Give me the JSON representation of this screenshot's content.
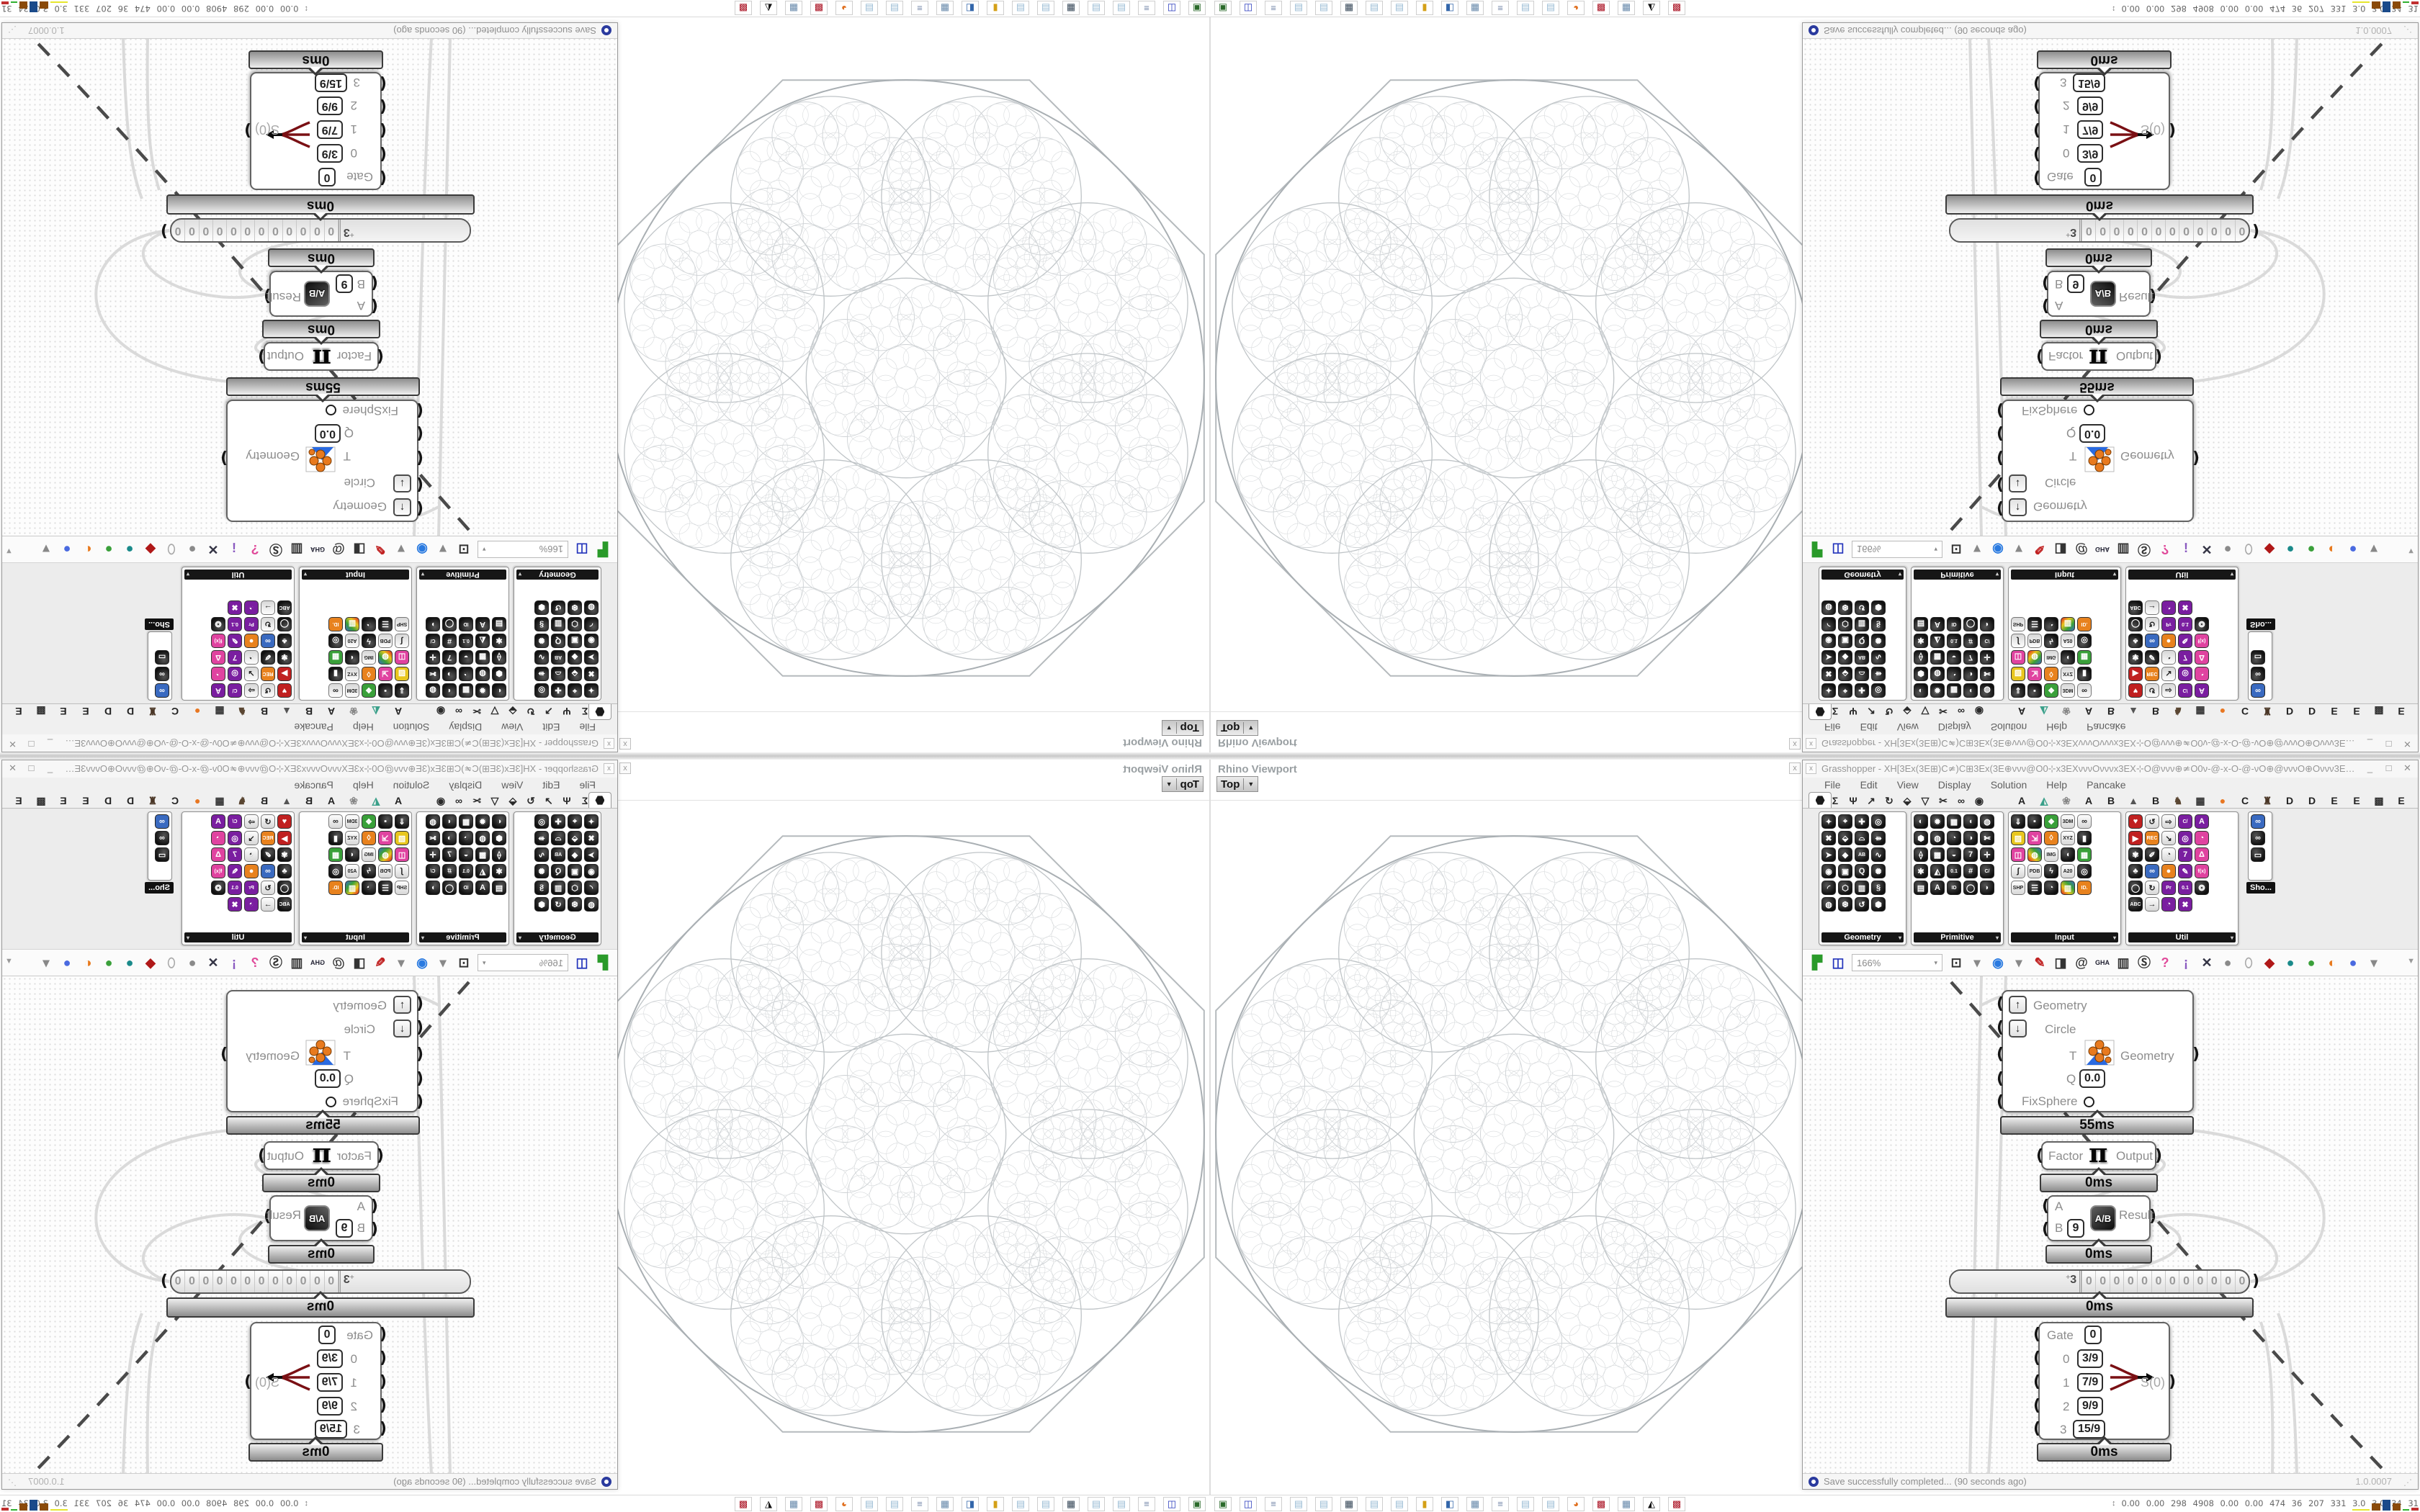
{
  "viewport": {
    "title": "Rhino Viewport",
    "tab": "Top",
    "tab_arrow": "▼",
    "close_label": "x"
  },
  "window": {
    "close_left": "x",
    "title": "Grasshopper - XH[3Ex(3E⊞)C≄)C⊞3Ex(3E⊕ννν@Ο0⊹x3EXνννΟνννx3EX⊹Ο@ννν⊕≄Ο0ν-@-x-Ο-@-νΟ⊕@νννΟ⊕Οννν3E]3Eννν⊕Οννν@≄Ο0ν-@-x-Ο-@-νΟ⊕@ννν@0⊹x3ExνννΟ...",
    "minimize": "_",
    "maximize": "□",
    "close": "✕"
  },
  "menu": {
    "items": [
      "File",
      "Edit",
      "View",
      "Display",
      "Solution",
      "Help",
      "Pancake"
    ]
  },
  "tabs": {
    "primary": [
      "⬢",
      "Σ",
      "Ψ",
      "↗",
      "↻",
      "⬙",
      "▽",
      "✂",
      "∞",
      "◉"
    ],
    "plugins": [
      [
        "A",
        "#222"
      ],
      [
        "◭",
        "#3aa08a"
      ],
      [
        "❀",
        "#888"
      ],
      [
        "A",
        "#222"
      ],
      [
        "B",
        "#222"
      ],
      [
        "▲",
        "#555"
      ],
      [
        "B",
        "#222"
      ],
      [
        "♞",
        "#5a4632"
      ],
      [
        "▦",
        "#333"
      ],
      [
        "●",
        "#e87722"
      ],
      [
        "C",
        "#222"
      ],
      [
        "♜",
        "#4a3626"
      ],
      [
        "D",
        "#222"
      ],
      [
        "D",
        "#222"
      ],
      [
        "E",
        "#222"
      ],
      [
        "E",
        "#222"
      ],
      [
        "▩",
        "#333"
      ],
      [
        "E",
        "#222"
      ]
    ]
  },
  "palette": {
    "panels": [
      {
        "label": "Geometry",
        "cols": 4,
        "icons": [
          [
            "✦"
          ],
          [
            "⌖"
          ],
          [
            "✚"
          ],
          [
            "◎"
          ],
          [
            "✖"
          ],
          [
            "⬙"
          ],
          [
            "⌓"
          ],
          [
            "⇻"
          ],
          [
            "➤"
          ],
          [
            "◆"
          ],
          [
            "AB"
          ],
          [
            "∿"
          ],
          [
            "◉"
          ],
          [
            "▣"
          ],
          [
            "Q"
          ],
          [
            "✺"
          ],
          [
            "◜"
          ],
          [
            "⬡"
          ],
          [
            "▥"
          ],
          [
            "§"
          ],
          [
            "◍"
          ],
          [
            "❆"
          ],
          [
            "↺"
          ],
          [
            "⬢"
          ]
        ]
      },
      {
        "label": "Primitive",
        "cols": 5,
        "icons": [
          [
            "◐"
          ],
          [
            "✹"
          ],
          [
            "▦"
          ],
          [
            "◖"
          ],
          [
            "◍"
          ],
          [
            "⬢"
          ],
          [
            "◍"
          ],
          [
            "◔"
          ],
          [
            "◑"
          ],
          [
            "✄"
          ],
          [
            "⟠"
          ],
          [
            "▩"
          ],
          [
            "◒"
          ],
          [
            "7"
          ],
          [
            "✛"
          ],
          [
            "✱"
          ],
          [
            "◭"
          ],
          [
            "0.1"
          ],
          [
            "#"
          ],
          [
            "C/"
          ],
          [
            "▤"
          ],
          [
            "A"
          ],
          [
            "ID"
          ],
          [
            "◯"
          ],
          [
            "◗"
          ]
        ]
      },
      {
        "label": "Input",
        "cols": 5,
        "icons": [
          [
            "⇓"
          ],
          [
            "▪"
          ],
          [
            "❖",
            "g"
          ],
          [
            "3DM",
            "w"
          ],
          [
            "∞",
            "w"
          ],
          [
            "▨",
            "y"
          ],
          [
            "⇲",
            "p"
          ],
          [
            "◊",
            "o"
          ],
          [
            "XYZ",
            "w"
          ],
          [
            "▮"
          ],
          [
            "◫",
            "p"
          ],
          [
            "◍",
            "rb"
          ],
          [
            "IMG",
            "w"
          ],
          [
            "◖"
          ],
          [
            "▦",
            "g"
          ],
          [
            "∫",
            "w"
          ],
          [
            "PDB",
            "w"
          ],
          [
            "ϟ"
          ],
          [
            "A20",
            "w"
          ],
          [
            "◎"
          ],
          [
            "SHP",
            "w"
          ],
          [
            "☰"
          ],
          [
            "◔"
          ],
          [
            "▥",
            "rb"
          ],
          [
            "ID.",
            "o"
          ]
        ]
      },
      {
        "label": "Util",
        "cols": 5,
        "icons": [
          [
            "♥",
            "r"
          ],
          [
            "↺",
            "w"
          ],
          [
            "⇨",
            "w"
          ],
          [
            "C/",
            "pu"
          ],
          [
            "A",
            "pu"
          ],
          [
            "▶",
            "r"
          ],
          [
            "REC",
            "o"
          ],
          [
            "↘",
            "w"
          ],
          [
            "◎",
            "pu"
          ],
          [
            "◔",
            "p"
          ],
          [
            "✾"
          ],
          [
            "✐"
          ],
          [
            "◔",
            "w"
          ],
          [
            "7",
            "pu"
          ],
          [
            "Δ",
            "p"
          ],
          [
            "♣"
          ],
          [
            "∞",
            "b"
          ],
          [
            "●",
            "o"
          ],
          [
            "✎",
            "pu"
          ],
          [
            "f(x)",
            "p"
          ],
          [
            "◯"
          ],
          [
            "↻",
            "w"
          ],
          [
            "Pr",
            "pu"
          ],
          [
            "0.1",
            "pu"
          ],
          [
            "❂"
          ],
          [
            "ABC"
          ],
          [
            "→",
            "w"
          ],
          [
            "◔",
            "pu"
          ],
          [
            "✖",
            "pu"
          ]
        ]
      }
    ],
    "overflow_icons": [
      [
        "∞",
        "b"
      ],
      [
        "∞"
      ],
      [
        "▭"
      ]
    ],
    "overflow_label": "Sho..."
  },
  "toolbar": {
    "zoom": "166%",
    "arrow": "▾",
    "funnel": "▼",
    "items": [
      [
        "▛",
        "#2a9a2a"
      ],
      [
        "◫",
        "#2233bb"
      ],
      [
        "⊡",
        "#333"
      ],
      [
        "▾",
        "#888"
      ],
      [
        "◉",
        "#2a7ae0"
      ],
      [
        "▾",
        "#888"
      ],
      [
        "✎",
        "#c02020"
      ],
      [
        "◨",
        "#333"
      ],
      [
        "@",
        "#333"
      ],
      [
        "GHA",
        "#223"
      ],
      [
        "▥",
        "#333"
      ],
      [
        "Ⓢ",
        "#333"
      ],
      [
        "?",
        "#e04a9a"
      ],
      [
        "¡",
        "#8a5ac0"
      ],
      [
        "✕",
        "#334"
      ],
      [
        "●",
        "#8a8a8a"
      ],
      [
        "⬯",
        "#aaa"
      ],
      [
        "◆",
        "#b01818"
      ],
      [
        "●",
        "#1a8a8a"
      ],
      [
        "●",
        "#3aa03a"
      ],
      [
        "◐",
        "#e87a1e"
      ],
      [
        "●",
        "#4a6ae0"
      ],
      [
        "▾",
        "#888"
      ]
    ]
  },
  "canvas": {
    "geometry_node": {
      "btn_up": "↑",
      "btn_down": "↓",
      "in_geometry": "Geometry",
      "in_circle": "Circle",
      "in_t": "T",
      "in_q": "Q",
      "q_value": "0.0",
      "in_fixsphere": "FixSphere",
      "out": "Geometry",
      "time": "55ms"
    },
    "pi_node": {
      "in": "Factor",
      "glyph": "π",
      "out": "Output",
      "time": "0ms"
    },
    "div_node": {
      "in_a": "A",
      "in_b": "B",
      "b_value": "9",
      "icon": "A/B",
      "out": "Result",
      "time": "0ms"
    },
    "slider": {
      "plus": "+",
      "value": "3",
      "digits": [
        "0",
        "0",
        "0",
        "0",
        "0",
        "0",
        "0",
        "0",
        "0",
        "0",
        "0",
        "0"
      ],
      "time": "0ms"
    },
    "gate_node": {
      "label": "Gate",
      "gate_value": "0",
      "rows": [
        [
          "0",
          "3/9"
        ],
        [
          "1",
          "7/9"
        ],
        [
          "2",
          "9/9"
        ],
        [
          "3",
          "15/9"
        ]
      ],
      "out": "S(0)",
      "time": "0ms"
    }
  },
  "statusbar": {
    "message": "Save successfully completed... (90 seconds ago)",
    "version": "1.0.0007",
    "grip": "⋰"
  },
  "osbar": {
    "launcher": [
      [
        "▣",
        "#2a6a2a"
      ],
      [
        "◫",
        "#2233bb"
      ],
      [
        "≡",
        "#7788aa"
      ],
      [
        "▤",
        "#99bbd4"
      ],
      [
        "▤",
        "#99bbd4"
      ],
      [
        "▦",
        "#334455"
      ],
      [
        "▤",
        "#99bbd4"
      ],
      [
        "▤",
        "#99bbd4"
      ],
      [
        "▮",
        "#d4a017"
      ],
      [
        "◧",
        "#3366aa"
      ],
      [
        "▦",
        "#6688aa"
      ],
      [
        "≡",
        "#7788aa"
      ],
      [
        "▤",
        "#99bbd4"
      ],
      [
        "▤",
        "#99bbd4"
      ],
      [
        "◕",
        "#e07020"
      ],
      [
        "▩",
        "#aa1122"
      ],
      [
        "▦",
        "#6688aa"
      ],
      [
        "◭",
        "#111111"
      ],
      [
        "▩",
        "#aa1122"
      ]
    ],
    "monitor_icon": "↕",
    "monitor": "0.00 0.00  298  4908 0.00 0.00  474   36   207   331   3.0   3.0   34   31  51176739",
    "histogram": [
      [
        "#e6e62e",
        56,
        2
      ],
      [
        "#8a4a0a",
        30,
        10
      ],
      [
        "#1a4a8a",
        26,
        15
      ],
      [
        "#8a4a0a",
        26,
        10
      ],
      [
        "#30b030",
        20,
        2
      ],
      [
        "#c03030",
        24,
        4
      ]
    ]
  },
  "colors": {
    "fractal_stroke": "#c2c6c9",
    "accent_orange": "#e87a1e",
    "wire_red": "#7a1014",
    "dash": "#4a4a4a"
  }
}
